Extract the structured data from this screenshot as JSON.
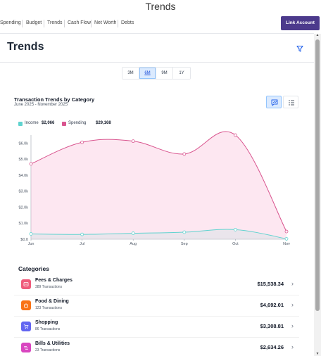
{
  "window": {
    "title": "Trends"
  },
  "nav": {
    "tabs": [
      "Spending",
      "Budget",
      "Trends",
      "Cash Flow",
      "Net Worth",
      "Debts"
    ],
    "link_account_label": "Link Account"
  },
  "page": {
    "title": "Trends",
    "filter_icon": "filter-icon"
  },
  "range": {
    "options": [
      "3M",
      "6M",
      "9M",
      "1Y"
    ],
    "selected": "6M"
  },
  "chart_header": {
    "title": "Transaction Trends by Category",
    "subtitle": "June 2025 - November 2025",
    "chart_view_icon": "chart-view-icon",
    "list_view_icon": "list-view-icon"
  },
  "legend": {
    "income_label": "Income",
    "income_total": "$2,066",
    "spending_label": "Spending",
    "spending_total": "$29,168"
  },
  "chart_data": {
    "type": "area",
    "categories": [
      "Jun",
      "Jul",
      "Aug",
      "Sep",
      "Oct",
      "Nov"
    ],
    "series": [
      {
        "name": "Income",
        "values": [
          330,
          300,
          370,
          440,
          600,
          26
        ],
        "color": "#5fd3cf"
      },
      {
        "name": "Spending",
        "values": [
          4700,
          6050,
          6120,
          5320,
          6500,
          480
        ],
        "color": "#d9558f"
      }
    ],
    "yticks": [
      "$0.0",
      "$1.0k",
      "$2.0k",
      "$3.0k",
      "$4.0k",
      "$5.0k",
      "$6.0k"
    ],
    "ylim": [
      0,
      6500
    ],
    "grid": false,
    "legend_placement": "top-left"
  },
  "categories": {
    "heading": "Categories",
    "items": [
      {
        "name": "Fees & Charges",
        "count": "389 Transactions",
        "amount": "$15,538.34",
        "color": "#ef5b7b",
        "icon": "receipt-icon"
      },
      {
        "name": "Food & Dining",
        "count": "123 Transactions",
        "amount": "$4,692.01",
        "color": "#f97316",
        "icon": "food-icon"
      },
      {
        "name": "Shopping",
        "count": "86 Transactions",
        "amount": "$3,308.81",
        "color": "#6366f1",
        "icon": "cart-icon"
      },
      {
        "name": "Bills & Utilities",
        "count": "23 Transactions",
        "amount": "$2,634.26",
        "color": "#d946c0",
        "icon": "bill-icon"
      }
    ]
  }
}
